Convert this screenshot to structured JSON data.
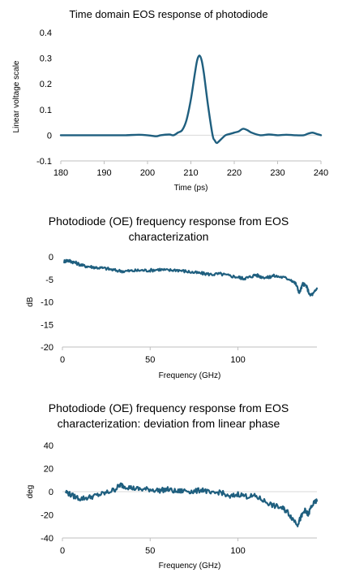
{
  "chart_data": [
    {
      "type": "line",
      "title": "Time domain EOS response of photodiode",
      "xlabel": "Time (ps)",
      "ylabel": "Linear voltage scale",
      "xlim": [
        180,
        240
      ],
      "ylim": [
        -0.1,
        0.4
      ],
      "xticks": [
        180,
        190,
        200,
        210,
        220,
        230,
        240
      ],
      "yticks": [
        -0.1,
        0,
        0.1,
        0.2,
        0.3,
        0.4
      ],
      "ytick_labels": [
        "-0.1",
        "0",
        "0.1",
        "0.2",
        "0.3",
        "0.4"
      ],
      "grid": false,
      "color": "#1f5f7f",
      "series": [
        {
          "x": [
            180,
            185,
            190,
            193,
            195,
            198,
            200,
            202,
            203,
            205,
            206,
            207,
            208,
            209,
            210,
            211,
            211.5,
            212,
            212.5,
            213,
            214,
            215,
            215.5,
            216,
            217,
            218,
            219,
            220,
            221,
            222,
            223,
            224,
            226,
            228,
            230,
            232,
            234,
            236,
            237,
            238,
            239,
            240
          ],
          "y": [
            0.0,
            0.0,
            0.0,
            0.0,
            0.0,
            0.002,
            0.0,
            -0.004,
            0.0,
            0.003,
            0.0,
            0.01,
            0.02,
            0.06,
            0.14,
            0.25,
            0.295,
            0.31,
            0.29,
            0.24,
            0.11,
            0.0,
            -0.02,
            -0.03,
            -0.015,
            0.0,
            0.005,
            0.01,
            0.015,
            0.025,
            0.02,
            0.01,
            0.0,
            0.003,
            0.0,
            0.002,
            0.0,
            0.0,
            0.006,
            0.01,
            0.005,
            0.0
          ]
        }
      ]
    },
    {
      "type": "line",
      "title": "Photodiode (OE) frequency response from EOS characterization",
      "title_lines": [
        "Photodiode (OE) frequency response from EOS",
        "characterization"
      ],
      "xlabel": "Frequency (GHz)",
      "ylabel": "dB",
      "xlim": [
        0,
        145
      ],
      "ylim": [
        -20,
        0
      ],
      "xticks": [
        0,
        50,
        100
      ],
      "yticks": [
        0,
        -5,
        -10,
        -15,
        -20
      ],
      "ytick_labels": [
        "0",
        "-5",
        "-10",
        "-15",
        "-20"
      ],
      "grid": false,
      "color": "#1f5f7f",
      "series": [
        {
          "x": [
            1,
            3,
            5,
            8,
            12,
            16,
            20,
            25,
            30,
            35,
            40,
            45,
            50,
            55,
            60,
            65,
            70,
            75,
            80,
            85,
            90,
            95,
            100,
            103,
            106,
            110,
            113,
            117,
            120,
            125,
            130,
            133,
            135,
            137,
            139,
            141,
            143,
            145
          ],
          "y": [
            -1.0,
            -0.8,
            -1.0,
            -1.4,
            -2.0,
            -2.2,
            -2.4,
            -2.6,
            -3.0,
            -3.2,
            -3.1,
            -3.0,
            -3.0,
            -2.8,
            -3.0,
            -2.9,
            -3.2,
            -3.5,
            -3.7,
            -3.9,
            -3.8,
            -4.2,
            -4.5,
            -4.8,
            -4.6,
            -4.0,
            -4.4,
            -4.6,
            -4.2,
            -4.5,
            -5.0,
            -6.0,
            -8.0,
            -6.0,
            -6.5,
            -8.5,
            -8.2,
            -7.0
          ],
          "noise": 0.35
        }
      ]
    },
    {
      "type": "line",
      "title": "Photodiode (OE) frequency response from EOS characterization: deviation from linear phase",
      "title_lines": [
        "Photodiode (OE) frequency response from EOS",
        "characterization: deviation from linear phase"
      ],
      "xlabel": "Frequency (GHz)",
      "ylabel": "deg",
      "xlim": [
        0,
        145
      ],
      "ylim": [
        -40,
        40
      ],
      "xticks": [
        0,
        50,
        100
      ],
      "yticks": [
        40,
        20,
        0,
        -20,
        -40
      ],
      "ytick_labels": [
        "40",
        "20",
        "0",
        "-20",
        "-40"
      ],
      "grid": false,
      "color": "#1f5f7f",
      "series": [
        {
          "x": [
            2,
            5,
            10,
            15,
            20,
            25,
            30,
            33,
            35,
            40,
            45,
            50,
            55,
            60,
            65,
            70,
            75,
            80,
            85,
            90,
            95,
            100,
            105,
            110,
            115,
            120,
            125,
            128,
            131,
            134,
            136,
            138,
            140,
            142,
            145
          ],
          "y": [
            0,
            -3,
            -6,
            -5,
            -3,
            -1,
            2,
            6,
            5,
            3,
            2,
            2,
            1,
            2,
            0,
            1,
            0,
            2,
            -2,
            0,
            -5,
            -2,
            -4,
            -4,
            -8,
            -12,
            -14,
            -17,
            -23,
            -28,
            -22,
            -16,
            -20,
            -12,
            -8
          ],
          "noise": 2.2
        }
      ]
    }
  ]
}
